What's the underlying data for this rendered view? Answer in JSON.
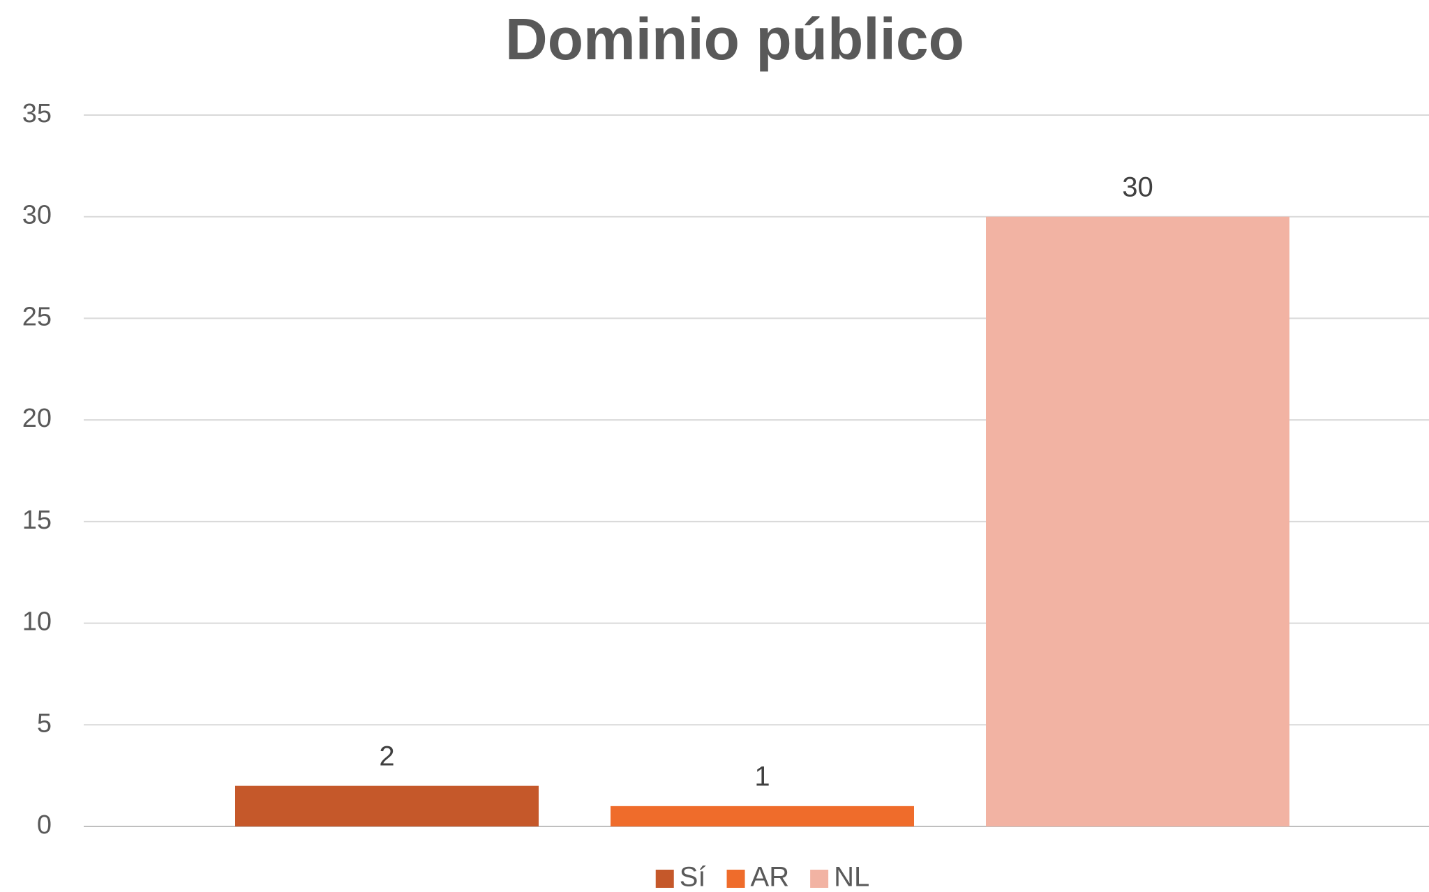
{
  "chart_data": {
    "type": "bar",
    "title": "Dominio público",
    "categories": [
      null
    ],
    "series": [
      {
        "name": "Sí",
        "color": "#c5582a",
        "values": [
          2
        ]
      },
      {
        "name": "AR",
        "color": "#ef6c2b",
        "values": [
          1
        ]
      },
      {
        "name": "NL",
        "color": "#f2b3a3",
        "values": [
          30
        ]
      }
    ],
    "ylim": [
      0,
      35
    ],
    "yticks": [
      0,
      5,
      10,
      15,
      20,
      25,
      30,
      35
    ],
    "grid": true,
    "legend": "bottom"
  }
}
